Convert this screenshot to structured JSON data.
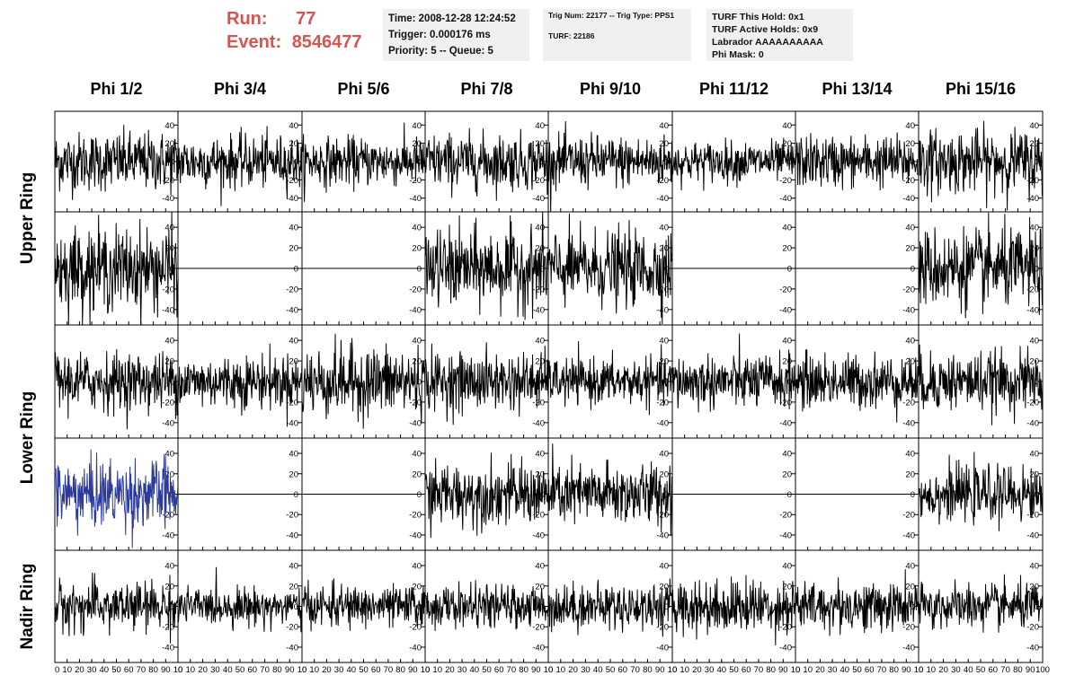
{
  "header": {
    "run_label": "Run:",
    "run_value": "77",
    "event_label": "Event:",
    "event_value": "8546477",
    "time": "Time: 2008-12-28 12:24:52",
    "trigger": "Trigger: 0.000176 ms",
    "priority": "Priority: 5 -- Queue: 5",
    "trig_num": "Trig Num: 22177 -- Trig Type: PPS1",
    "turf": "TURF: 22186",
    "turf_this_hold": "TURF This Hold: 0x1",
    "turf_active_holds": "TURF Active Holds: 0x9",
    "labrador": "Labrador AAAAAAAAAA",
    "phi_mask": "Phi Mask: 0"
  },
  "chart_data": {
    "type": "line",
    "title": "",
    "columns": [
      "Phi 1/2",
      "Phi 3/4",
      "Phi 5/6",
      "Phi 7/8",
      "Phi 9/10",
      "Phi 11/12",
      "Phi 13/14",
      "Phi 15/16"
    ],
    "ring_labels": [
      {
        "label": "Upper Ring",
        "rows": [
          0,
          1
        ]
      },
      {
        "label": "Lower Ring",
        "rows": [
          2,
          3
        ]
      },
      {
        "label": "Nadir Ring",
        "rows": [
          4,
          4
        ]
      }
    ],
    "xlim": [
      0,
      100
    ],
    "ylim": [
      -55,
      55
    ],
    "y_ticks": [
      -40,
      -20,
      0,
      20,
      40
    ],
    "x_ticks": [
      0,
      10,
      20,
      30,
      40,
      50,
      60,
      70,
      80,
      90,
      100
    ],
    "x_tick_labels_per_panel": [
      "0",
      "10",
      "20",
      "30",
      "40",
      "50",
      "60",
      "70",
      "80",
      "90",
      "10"
    ],
    "x_tick_labels_last": [
      "0",
      "10",
      "20",
      "30",
      "40",
      "50",
      "60",
      "70",
      "80",
      "90",
      "100"
    ],
    "samples": 260,
    "trace_color": "#000000",
    "highlight_color": "#2b3a9b",
    "panels": [
      [
        {
          "amp": 16
        },
        {
          "amp": 14
        },
        {
          "amp": 13
        },
        {
          "amp": 15
        },
        {
          "amp": 14
        },
        {
          "amp": 11
        },
        {
          "amp": 14
        },
        {
          "amp": 17
        }
      ],
      [
        {
          "amp": 20
        },
        {
          "amp": 0
        },
        {
          "amp": 0
        },
        {
          "amp": 19
        },
        {
          "amp": 18
        },
        {
          "amp": 0
        },
        {
          "amp": 0
        },
        {
          "amp": 19
        }
      ],
      [
        {
          "amp": 14
        },
        {
          "amp": 13
        },
        {
          "amp": 17
        },
        {
          "amp": 14
        },
        {
          "amp": 11
        },
        {
          "amp": 13
        },
        {
          "amp": 13
        },
        {
          "amp": 14
        }
      ],
      [
        {
          "amp": 17,
          "highlight": true
        },
        {
          "amp": 0
        },
        {
          "amp": 0
        },
        {
          "amp": 15
        },
        {
          "amp": 15
        },
        {
          "amp": 0
        },
        {
          "amp": 0
        },
        {
          "amp": 13
        }
      ],
      [
        {
          "amp": 12
        },
        {
          "amp": 9
        },
        {
          "amp": 10
        },
        {
          "amp": 10
        },
        {
          "amp": 11
        },
        {
          "amp": 13
        },
        {
          "amp": 12
        },
        {
          "amp": 11
        }
      ]
    ]
  }
}
